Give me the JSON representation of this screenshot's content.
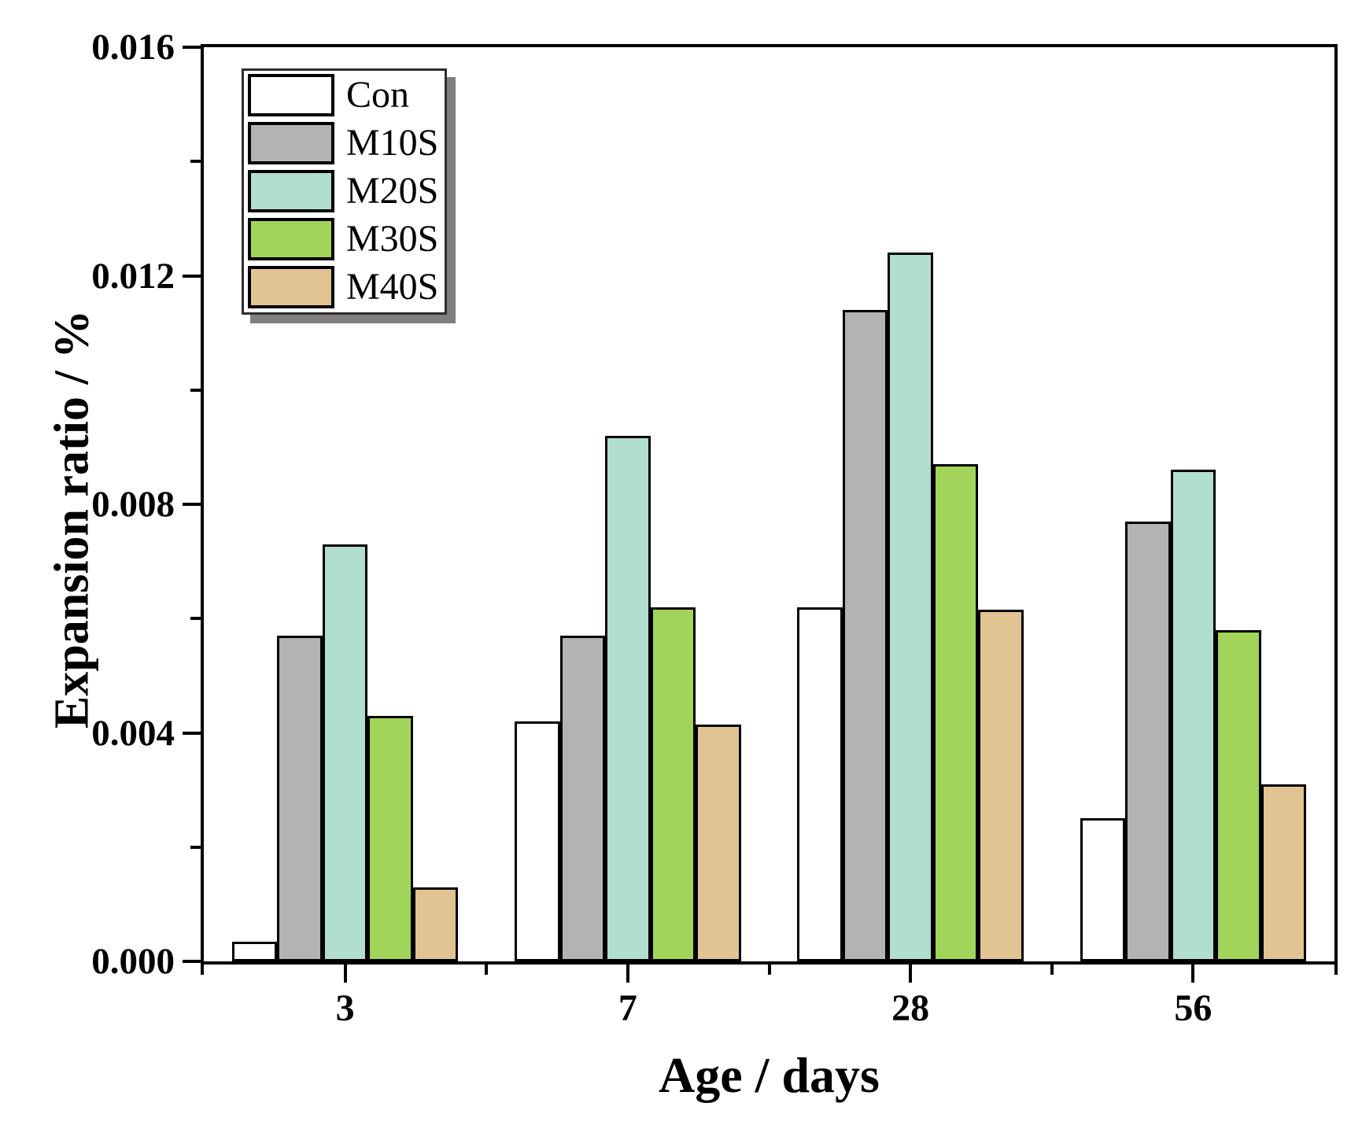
{
  "figure": {
    "background": "#ffffff",
    "accent_black": "#000000",
    "legend_shadow_color": "#7f7f7f"
  },
  "y_axis": {
    "title": "Expansion ratio / %",
    "tick_labels": [
      "0.000",
      "0.004",
      "0.008",
      "0.012",
      "0.016"
    ],
    "min": 0,
    "max": 0.016,
    "major_step": 0.004,
    "minor_step": 0.002
  },
  "x_axis": {
    "title": "Age / days",
    "tick_labels": [
      "3",
      "7",
      "28",
      "56"
    ]
  },
  "legend": {
    "items": [
      {
        "label": "Con",
        "color": "#ffffff"
      },
      {
        "label": "M10S",
        "color": "#b3b3b3"
      },
      {
        "label": "M20S",
        "color": "#b2ddd1"
      },
      {
        "label": "M30S",
        "color": "#a2d45a"
      },
      {
        "label": "M40S",
        "color": "#e2c493"
      }
    ]
  },
  "chart_data": {
    "type": "bar",
    "title": "",
    "xlabel": "Age / days",
    "ylabel": "Expansion ratio / %",
    "categories": [
      "3",
      "7",
      "28",
      "56"
    ],
    "series": [
      {
        "name": "Con",
        "color": "#ffffff",
        "values": [
          0.00035,
          0.0042,
          0.0062,
          0.0025
        ]
      },
      {
        "name": "M10S",
        "color": "#b3b3b3",
        "values": [
          0.0057,
          0.0057,
          0.0114,
          0.0077
        ]
      },
      {
        "name": "M20S",
        "color": "#b2ddd1",
        "values": [
          0.0073,
          0.0092,
          0.0124,
          0.0086
        ]
      },
      {
        "name": "M30S",
        "color": "#a2d45a",
        "values": [
          0.0043,
          0.0062,
          0.0087,
          0.0058
        ]
      },
      {
        "name": "M40S",
        "color": "#e2c493",
        "values": [
          0.0013,
          0.00415,
          0.00615,
          0.0031
        ]
      }
    ],
    "ylim": [
      0,
      0.016
    ],
    "grid": false,
    "legend_position": "upper-left-inside",
    "bar_outline_color": "#000000"
  }
}
